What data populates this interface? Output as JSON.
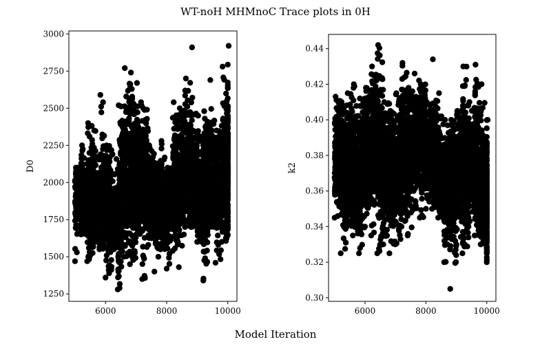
{
  "figure": {
    "title": "WT-noH MHMnoC Trace plots in 0H",
    "xlabel": "Model Iteration"
  },
  "colors": {
    "points": "#000000",
    "axes": "#000000",
    "background": "#ffffff"
  },
  "chart_data": [
    {
      "type": "scatter",
      "title": "",
      "xlabel": "",
      "ylabel": "D0",
      "xlim": [
        4800,
        10300
      ],
      "ylim": [
        1200,
        3020
      ],
      "xticks": [
        6000,
        8000,
        10000
      ],
      "yticks": [
        1250,
        1500,
        1750,
        2000,
        2250,
        2500,
        2750,
        3000
      ],
      "grid": false,
      "series": [
        {
          "x": [
            5000,
            5200,
            5400,
            5600,
            5800,
            6000,
            6200,
            6400,
            6600,
            6800,
            7000,
            7200,
            7400,
            7600,
            7800,
            8000,
            8200,
            8400,
            8600,
            8800,
            9000,
            9200,
            9400,
            9600,
            9800,
            10000
          ],
          "y_center": [
            1900,
            1950,
            1880,
            1920,
            1850,
            1900,
            1800,
            1750,
            2100,
            2050,
            2000,
            2000,
            1950,
            1850,
            1900,
            1780,
            2000,
            1950,
            2150,
            2050,
            1950,
            1850,
            2050,
            1950,
            2050,
            2150
          ],
          "y_low": [
            1470,
            1650,
            1470,
            1600,
            1550,
            1360,
            1550,
            1280,
            1500,
            1450,
            1650,
            1350,
            1580,
            1400,
            1550,
            1420,
            1540,
            1430,
            1700,
            1700,
            1600,
            1340,
            1700,
            1460,
            1600,
            1650
          ],
          "y_high": [
            2100,
            2250,
            2400,
            2350,
            2590,
            2250,
            2190,
            2520,
            2770,
            2740,
            2670,
            2500,
            2250,
            2130,
            2280,
            2100,
            2540,
            2500,
            2700,
            2910,
            2450,
            2480,
            2690,
            2350,
            2780,
            2920
          ]
        }
      ]
    },
    {
      "type": "scatter",
      "title": "",
      "xlabel": "",
      "ylabel": "k2",
      "xlim": [
        4800,
        10300
      ],
      "ylim": [
        0.298,
        0.448
      ],
      "xticks": [
        6000,
        8000,
        10000
      ],
      "yticks": [
        0.3,
        0.32,
        0.34,
        0.36,
        0.38,
        0.4,
        0.42,
        0.44
      ],
      "grid": false,
      "series": [
        {
          "x": [
            5000,
            5200,
            5400,
            5600,
            5800,
            6000,
            6200,
            6400,
            6600,
            6800,
            7000,
            7200,
            7400,
            7600,
            7800,
            8000,
            8200,
            8400,
            8600,
            8800,
            9000,
            9200,
            9400,
            9600,
            9800,
            10000
          ],
          "y_center": [
            0.375,
            0.38,
            0.37,
            0.375,
            0.37,
            0.38,
            0.385,
            0.39,
            0.37,
            0.375,
            0.37,
            0.385,
            0.38,
            0.385,
            0.39,
            0.385,
            0.38,
            0.375,
            0.36,
            0.365,
            0.37,
            0.38,
            0.37,
            0.38,
            0.365,
            0.355
          ],
          "y_low": [
            0.345,
            0.325,
            0.34,
            0.335,
            0.325,
            0.34,
            0.335,
            0.325,
            0.33,
            0.325,
            0.33,
            0.34,
            0.335,
            0.35,
            0.345,
            0.35,
            0.35,
            0.345,
            0.32,
            0.305,
            0.33,
            0.325,
            0.34,
            0.335,
            0.33,
            0.32
          ],
          "y_high": [
            0.413,
            0.41,
            0.415,
            0.42,
            0.412,
            0.418,
            0.43,
            0.442,
            0.41,
            0.405,
            0.415,
            0.432,
            0.418,
            0.426,
            0.42,
            0.41,
            0.434,
            0.415,
            0.4,
            0.4,
            0.405,
            0.43,
            0.41,
            0.431,
            0.42,
            0.4
          ]
        }
      ]
    }
  ]
}
